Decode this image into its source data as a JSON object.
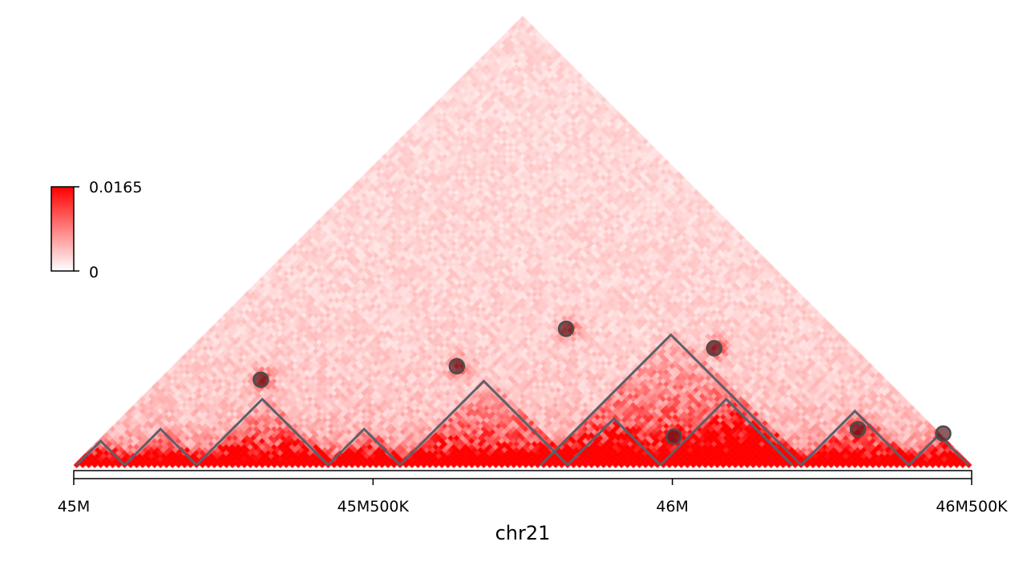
{
  "chart_data": {
    "type": "heatmap",
    "title": "",
    "subtitle": "",
    "xlabel": "chr21",
    "xlim": [
      45000000,
      46500000
    ],
    "x_ticks": [
      {
        "value": 45000000,
        "label": "45M"
      },
      {
        "value": 45500000,
        "label": "45M500K"
      },
      {
        "value": 46000000,
        "label": "46M"
      },
      {
        "value": 46500000,
        "label": "46M500K"
      }
    ],
    "colorbar": {
      "min": 0,
      "max": 0.0165,
      "min_label": "0",
      "max_label": "0.0165",
      "colors": [
        "#ffffff",
        "#ff0000"
      ]
    },
    "domains": [
      {
        "start": 45005000,
        "end": 45085000
      },
      {
        "start": 45085000,
        "end": 45205000
      },
      {
        "start": 45205000,
        "end": 45425000
      },
      {
        "start": 45425000,
        "end": 45545000
      },
      {
        "start": 45545000,
        "end": 45825000
      },
      {
        "start": 45825000,
        "end": 45980000
      },
      {
        "start": 45980000,
        "end": 46200000
      },
      {
        "start": 45780000,
        "end": 46215000
      },
      {
        "start": 46215000,
        "end": 46395000
      },
      {
        "start": 46395000,
        "end": 46495000
      }
    ],
    "loops": [
      {
        "anchor1": 45170000,
        "anchor2": 45455000
      },
      {
        "anchor1": 45475000,
        "anchor2": 45805000
      },
      {
        "anchor1": 45595000,
        "anchor2": 46050000
      },
      {
        "anchor1": 45955000,
        "anchor2": 46050000
      },
      {
        "anchor1": 45875000,
        "anchor2": 46265000
      },
      {
        "anchor1": 46250000,
        "anchor2": 46370000
      },
      {
        "anchor1": 46400000,
        "anchor2": 46505000
      }
    ]
  },
  "colors": {
    "domain_line": "#5f5f6a",
    "loop_marker": "#5a1a1f",
    "heat_high": "#ff0000",
    "heat_low": "#ffffff"
  }
}
